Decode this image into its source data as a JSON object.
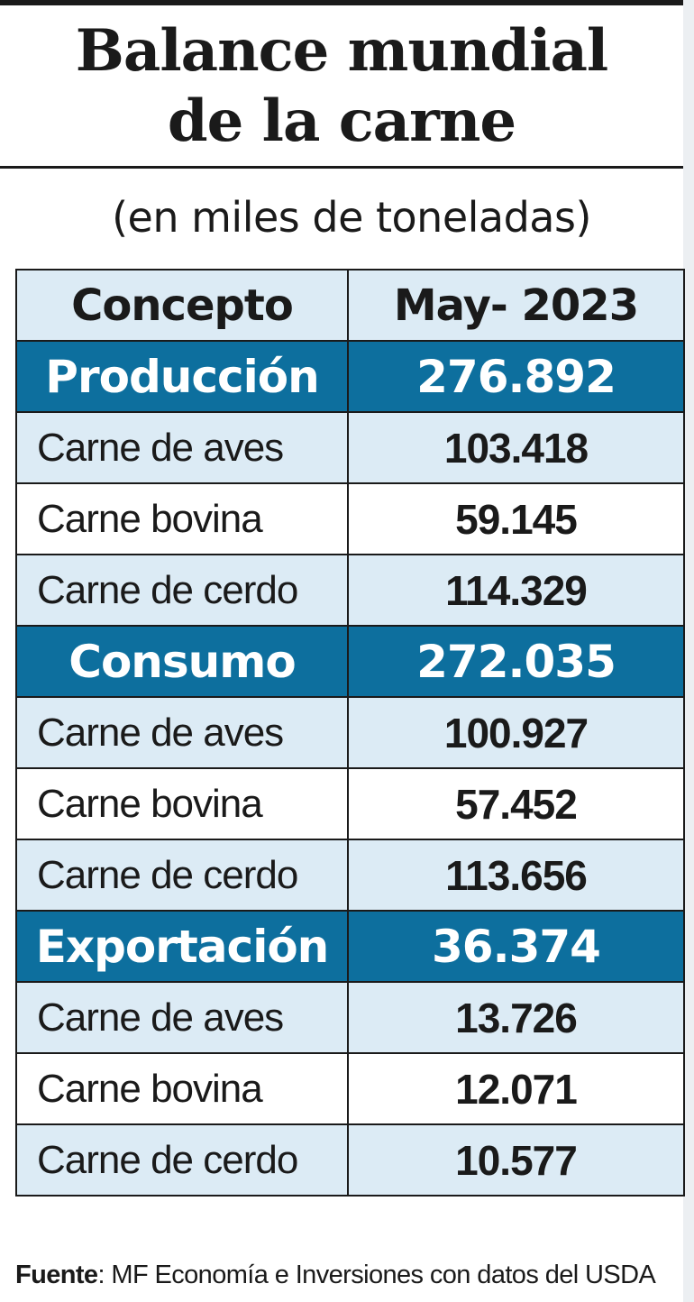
{
  "title_line1": "Balance mundial",
  "title_line2": "de la carne",
  "subtitle": "(en miles de toneladas)",
  "colors": {
    "group_header_bg": "#0d6f9e",
    "light_row_bg": "#dcebf5",
    "text": "#1a1a1a"
  },
  "chart_data": {
    "type": "table",
    "columns": [
      "Concepto",
      "May- 2023"
    ],
    "groups": [
      {
        "label": "Producción",
        "total": "276.892",
        "items": [
          {
            "label": "Carne de aves",
            "value": "103.418"
          },
          {
            "label": "Carne bovina",
            "value": "59.145"
          },
          {
            "label": "Carne de cerdo",
            "value": "114.329"
          }
        ]
      },
      {
        "label": "Consumo",
        "total": "272.035",
        "items": [
          {
            "label": "Carne de aves",
            "value": "100.927"
          },
          {
            "label": "Carne bovina",
            "value": "57.452"
          },
          {
            "label": "Carne de cerdo",
            "value": "113.656"
          }
        ]
      },
      {
        "label": "Exportación",
        "total": "36.374",
        "items": [
          {
            "label": "Carne de aves",
            "value": "13.726"
          },
          {
            "label": "Carne bovina",
            "value": "12.071"
          },
          {
            "label": "Carne de cerdo",
            "value": "10.577"
          }
        ]
      }
    ]
  },
  "source": {
    "label": "Fuente",
    "text": ": MF Economía e Inversiones con datos del USDA"
  }
}
